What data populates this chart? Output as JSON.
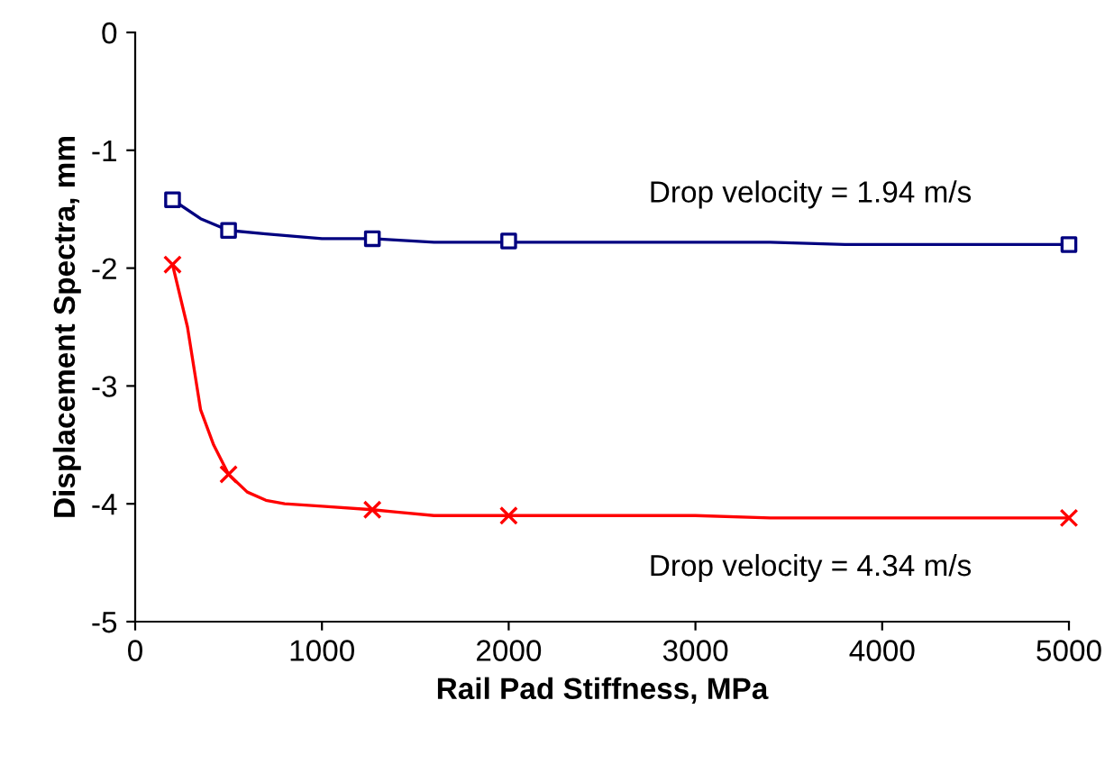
{
  "chart_data": {
    "type": "line",
    "xlabel": "Rail Pad Stiffness, MPa",
    "ylabel": "Displacement Spectra, mm",
    "xlim": [
      0,
      5000
    ],
    "xticks": [
      0,
      1000,
      2000,
      3000,
      4000,
      5000
    ],
    "ylim": [
      -5,
      0
    ],
    "yticks": [
      -5,
      -4,
      -3,
      -2,
      -1,
      0
    ],
    "grid": false,
    "series": [
      {
        "color": "#000080",
        "marker": "none",
        "x": [
          200,
          350,
          500,
          700,
          1000,
          1270,
          1600,
          2000,
          3400,
          3800,
          5000
        ],
        "values": [
          -1.42,
          -1.58,
          -1.68,
          -1.71,
          -1.75,
          -1.75,
          -1.78,
          -1.78,
          -1.78,
          -1.8,
          -1.8
        ]
      },
      {
        "type": "scatter",
        "color": "#000080",
        "marker": "square",
        "x": [
          200,
          500,
          1270,
          2000,
          5000
        ],
        "values": [
          -1.42,
          -1.68,
          -1.75,
          -1.77,
          -1.8
        ]
      },
      {
        "color": "#ff0000",
        "marker": "none",
        "x": [
          200,
          280,
          350,
          420,
          500,
          600,
          700,
          800,
          1000,
          1270,
          1400,
          1600,
          2000,
          3000,
          3400,
          5000
        ],
        "values": [
          -1.97,
          -2.5,
          -3.2,
          -3.5,
          -3.75,
          -3.9,
          -3.97,
          -4.0,
          -4.02,
          -4.05,
          -4.07,
          -4.1,
          -4.1,
          -4.1,
          -4.12,
          -4.12
        ]
      },
      {
        "type": "scatter",
        "color": "#ff0000",
        "marker": "cross",
        "x": [
          200,
          500,
          1270,
          2000,
          5000
        ],
        "values": [
          -1.97,
          -3.75,
          -4.05,
          -4.1,
          -4.12
        ]
      }
    ],
    "annotations": [
      "Drop velocity = 1.94 m/s",
      "Drop velocity = 4.34 m/s"
    ]
  }
}
